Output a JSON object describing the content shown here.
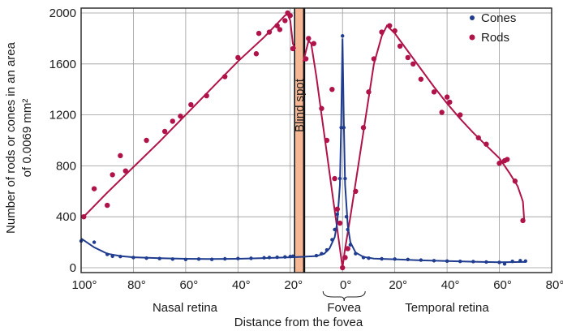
{
  "chart_data": {
    "type": "scatter",
    "title": "",
    "xlabel": "Distance from the fovea",
    "ylabel_lines": [
      "Number of rods or cones in an area",
      "of 0.0069 mm²"
    ],
    "xlim": [
      -100,
      80
    ],
    "ylim": [
      0,
      2000
    ],
    "x_ticks": [
      -100,
      -80,
      -60,
      -40,
      -20,
      0,
      20,
      40,
      60,
      80
    ],
    "x_tick_labels": [
      "100°",
      "80°",
      "60°",
      "40°",
      "20°",
      "0°",
      "20°",
      "40°",
      "60°",
      "80°"
    ],
    "y_ticks": [
      0,
      400,
      800,
      1200,
      1600,
      2000
    ],
    "y_tick_labels": [
      "0",
      "400",
      "800",
      "1200",
      "1600",
      "2000"
    ],
    "grid": true,
    "legend_position": "top-right",
    "blind_spot": {
      "x_range": [
        -18,
        -15
      ],
      "label": "Blind spot",
      "color": "#f6b894"
    },
    "region_labels": {
      "nasal": "Nasal retina",
      "fovea": "Fovea",
      "temporal": "Temporal retina"
    },
    "series": [
      {
        "name": "Cones",
        "color": "#1f3c8f",
        "points": [
          [
            -100,
            210
          ],
          [
            -95,
            200
          ],
          [
            -90,
            105
          ],
          [
            -88,
            90
          ],
          [
            -85,
            88
          ],
          [
            -80,
            80
          ],
          [
            -75,
            75
          ],
          [
            -70,
            72
          ],
          [
            -65,
            68
          ],
          [
            -60,
            65
          ],
          [
            -55,
            68
          ],
          [
            -50,
            66
          ],
          [
            -45,
            70
          ],
          [
            -40,
            72
          ],
          [
            -35,
            74
          ],
          [
            -30,
            78
          ],
          [
            -28,
            80
          ],
          [
            -25,
            82
          ],
          [
            -22,
            85
          ],
          [
            -20,
            88
          ],
          [
            -19,
            90
          ],
          [
            -10,
            95
          ],
          [
            -8,
            110
          ],
          [
            -6,
            140
          ],
          [
            -4,
            220
          ],
          [
            -3,
            300
          ],
          [
            -2,
            420
          ],
          [
            -1,
            700
          ],
          [
            -0.5,
            1100
          ],
          [
            0,
            1820
          ],
          [
            0.5,
            1100
          ],
          [
            1,
            700
          ],
          [
            1.5,
            400
          ],
          [
            2,
            300
          ],
          [
            3,
            180
          ],
          [
            5,
            110
          ],
          [
            8,
            80
          ],
          [
            10,
            75
          ],
          [
            15,
            70
          ],
          [
            20,
            68
          ],
          [
            25,
            65
          ],
          [
            30,
            60
          ],
          [
            35,
            55
          ],
          [
            40,
            52
          ],
          [
            45,
            50
          ],
          [
            50,
            48
          ],
          [
            55,
            45
          ],
          [
            60,
            42
          ],
          [
            62,
            30
          ],
          [
            65,
            50
          ],
          [
            68,
            55
          ],
          [
            70,
            52
          ]
        ],
        "curve": [
          [
            -100,
            230
          ],
          [
            -95,
            160
          ],
          [
            -90,
            110
          ],
          [
            -85,
            92
          ],
          [
            -80,
            82
          ],
          [
            -70,
            75
          ],
          [
            -60,
            70
          ],
          [
            -50,
            68
          ],
          [
            -40,
            70
          ],
          [
            -30,
            76
          ],
          [
            -20,
            82
          ],
          [
            -15,
            86
          ],
          [
            -10,
            92
          ],
          [
            -7,
            110
          ],
          [
            -5,
            150
          ],
          [
            -3,
            240
          ],
          [
            -2,
            360
          ],
          [
            -1,
            650
          ],
          [
            -0.5,
            1150
          ],
          [
            0,
            1800
          ],
          [
            0.5,
            1150
          ],
          [
            1,
            650
          ],
          [
            2,
            330
          ],
          [
            3,
            200
          ],
          [
            5,
            120
          ],
          [
            8,
            85
          ],
          [
            12,
            72
          ],
          [
            20,
            66
          ],
          [
            30,
            58
          ],
          [
            40,
            52
          ],
          [
            50,
            47
          ],
          [
            60,
            43
          ],
          [
            70,
            45
          ]
        ]
      },
      {
        "name": "Rods",
        "color": "#b0124a",
        "points": [
          [
            -99,
            400
          ],
          [
            -95,
            620
          ],
          [
            -90,
            490
          ],
          [
            -88,
            730
          ],
          [
            -85,
            880
          ],
          [
            -83,
            760
          ],
          [
            -75,
            1000
          ],
          [
            -68,
            1070
          ],
          [
            -65,
            1150
          ],
          [
            -62,
            1190
          ],
          [
            -58,
            1280
          ],
          [
            -52,
            1350
          ],
          [
            -45,
            1500
          ],
          [
            -40,
            1650
          ],
          [
            -33,
            1680
          ],
          [
            -32,
            1840
          ],
          [
            -28,
            1850
          ],
          [
            -25,
            1900
          ],
          [
            -24,
            1870
          ],
          [
            -22,
            1940
          ],
          [
            -21,
            2000
          ],
          [
            -20,
            1980
          ],
          [
            -19,
            1720
          ],
          [
            -14,
            1640
          ],
          [
            -13,
            1800
          ],
          [
            -11,
            1760
          ],
          [
            -8,
            1250
          ],
          [
            -6,
            1000
          ],
          [
            -4,
            1400
          ],
          [
            -3,
            700
          ],
          [
            -2,
            460
          ],
          [
            -1,
            350
          ],
          [
            0,
            0
          ],
          [
            1,
            80
          ],
          [
            2,
            150
          ],
          [
            5,
            600
          ],
          [
            8,
            1100
          ],
          [
            10,
            1380
          ],
          [
            12,
            1640
          ],
          [
            15,
            1850
          ],
          [
            18,
            1900
          ],
          [
            20,
            1860
          ],
          [
            22,
            1740
          ],
          [
            25,
            1650
          ],
          [
            27,
            1600
          ],
          [
            30,
            1480
          ],
          [
            35,
            1380
          ],
          [
            38,
            1220
          ],
          [
            40,
            1340
          ],
          [
            41,
            1300
          ],
          [
            45,
            1200
          ],
          [
            52,
            1020
          ],
          [
            55,
            970
          ],
          [
            60,
            820
          ],
          [
            62,
            840
          ],
          [
            63,
            850
          ],
          [
            66,
            680
          ],
          [
            69,
            370
          ]
        ],
        "curve_left": [
          [
            -99,
            400
          ],
          [
            -90,
            590
          ],
          [
            -80,
            790
          ],
          [
            -70,
            990
          ],
          [
            -60,
            1200
          ],
          [
            -50,
            1410
          ],
          [
            -40,
            1620
          ],
          [
            -30,
            1810
          ],
          [
            -22,
            1980
          ],
          [
            -21,
            1990
          ],
          [
            -20,
            1940
          ],
          [
            -19,
            1760
          ],
          [
            -18,
            1720
          ]
        ],
        "curve_right": [
          [
            -15,
            1620
          ],
          [
            -13,
            1780
          ],
          [
            -12,
            1760
          ],
          [
            -10,
            1500
          ],
          [
            -8,
            1200
          ],
          [
            -6,
            900
          ],
          [
            -4,
            600
          ],
          [
            -2,
            300
          ],
          [
            -1,
            150
          ],
          [
            0,
            0
          ],
          [
            1,
            150
          ],
          [
            3,
            400
          ],
          [
            6,
            800
          ],
          [
            9,
            1200
          ],
          [
            12,
            1600
          ],
          [
            15,
            1820
          ],
          [
            17,
            1900
          ],
          [
            20,
            1840
          ],
          [
            25,
            1700
          ],
          [
            30,
            1560
          ],
          [
            35,
            1420
          ],
          [
            40,
            1290
          ],
          [
            45,
            1170
          ],
          [
            50,
            1060
          ],
          [
            55,
            960
          ],
          [
            60,
            860
          ],
          [
            64,
            740
          ],
          [
            67,
            640
          ],
          [
            69,
            520
          ],
          [
            69.5,
            370
          ]
        ]
      }
    ]
  }
}
